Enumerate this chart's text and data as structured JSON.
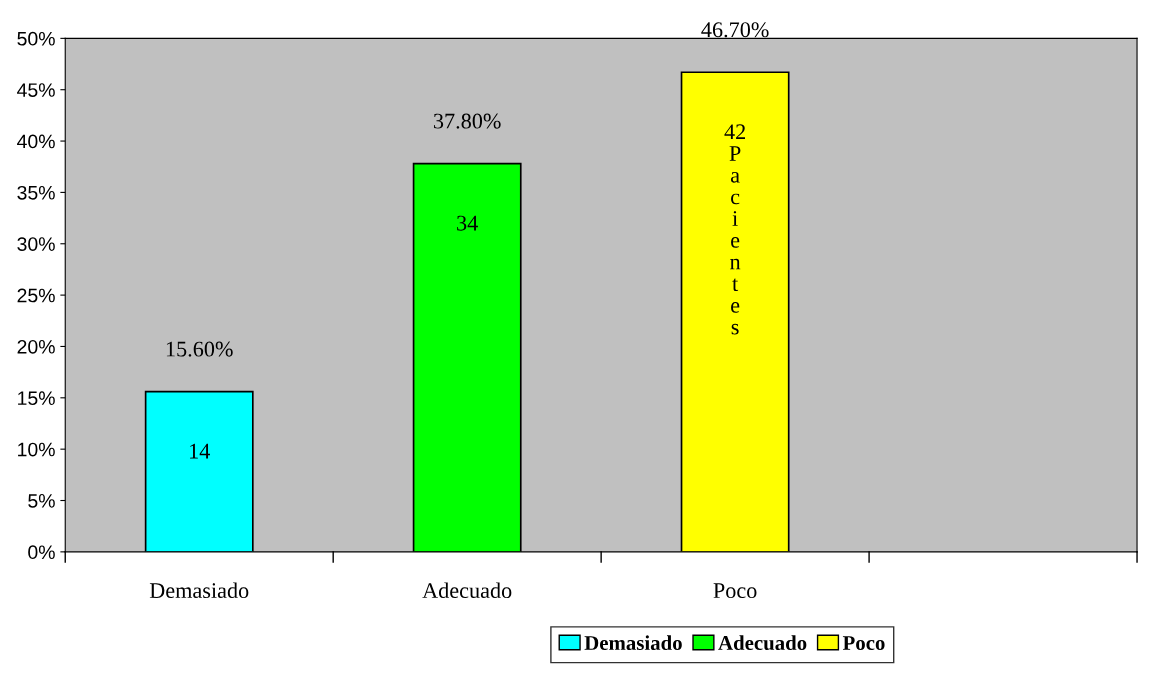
{
  "chart_data": {
    "type": "bar",
    "categories": [
      "Demasiado",
      "Adecuado",
      "Poco",
      null
    ],
    "series": [
      {
        "name": "Demasiado",
        "color": "#00ffff",
        "values": [
          15.6,
          null,
          null,
          null
        ],
        "value_labels": [
          "15.60%",
          null,
          null,
          null
        ]
      },
      {
        "name": "Adecuado",
        "color": "#00ff00",
        "values": [
          null,
          37.8,
          null,
          null
        ],
        "value_labels": [
          null,
          "37.80%",
          null,
          null
        ]
      },
      {
        "name": "Poco",
        "color": "#ffff00",
        "values": [
          null,
          null,
          46.7,
          null
        ],
        "value_labels": [
          null,
          null,
          "46.70%",
          null
        ]
      }
    ],
    "ylim": [
      0,
      50
    ],
    "yticks": [
      {
        "value": 0,
        "label": "0%"
      },
      {
        "value": 5,
        "label": "5%"
      },
      {
        "value": 10,
        "label": "10%"
      },
      {
        "value": 15,
        "label": "15%"
      },
      {
        "value": 20,
        "label": "20%"
      },
      {
        "value": 25,
        "label": "25%"
      },
      {
        "value": 30,
        "label": "30%"
      },
      {
        "value": 35,
        "label": "35%"
      },
      {
        "value": 40,
        "label": "40%"
      },
      {
        "value": 45,
        "label": "45%"
      },
      {
        "value": 50,
        "label": "50%"
      }
    ],
    "annotations": [
      "14",
      "34",
      "42 Pacientes"
    ],
    "grid": false,
    "legend": "bottom"
  }
}
